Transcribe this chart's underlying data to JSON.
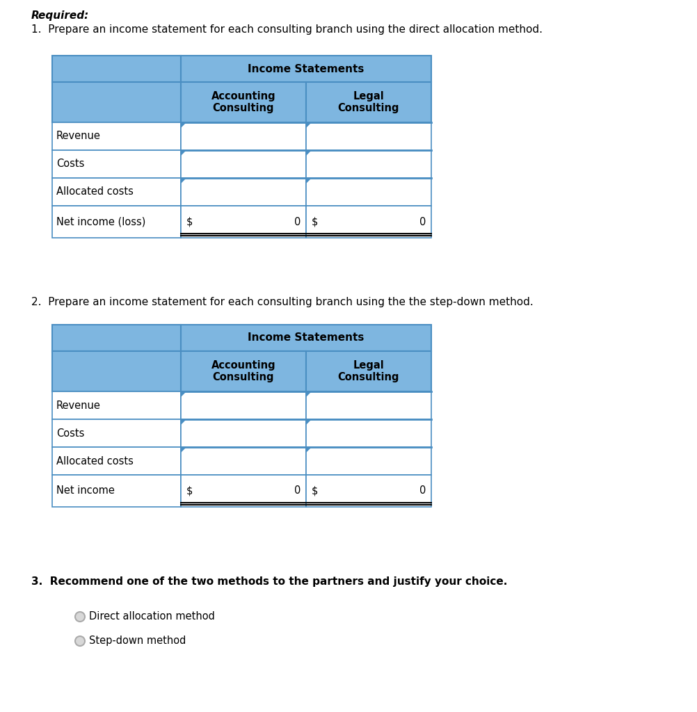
{
  "title_required": "Required:",
  "q1_text": "1.  Prepare an income statement for each consulting branch using the direct allocation method.",
  "q2_text": "2.  Prepare an income statement for each consulting branch using the the step-down method.",
  "q3_text": "3.  Recommend one of the two methods to the partners and justify your choice.",
  "radio_options": [
    "Direct allocation method",
    "Step-down method"
  ],
  "table_header_main": "Income Statements",
  "table_col1": "Accounting\nConsulting",
  "table_col2": "Legal\nConsulting",
  "table1_rows": [
    {
      "label": "Revenue"
    },
    {
      "label": "Costs"
    },
    {
      "label": "Allocated costs"
    },
    {
      "label": "Net income (loss)",
      "val1": "$",
      "num1": "0",
      "val2": "$",
      "num2": "0"
    }
  ],
  "table2_rows": [
    {
      "label": "Revenue"
    },
    {
      "label": "Costs"
    },
    {
      "label": "Allocated costs"
    },
    {
      "label": "Net income",
      "val1": "$",
      "num1": "0",
      "val2": "$",
      "num2": "0"
    }
  ],
  "header_bg": "#7EB6E0",
  "border_color": "#4A8EC2",
  "border_color_dark": "#2B6EA8",
  "text_color": "#000000",
  "bg_color": "#FFFFFF",
  "fig_width": 10.02,
  "fig_height": 10.24,
  "dpi": 100
}
